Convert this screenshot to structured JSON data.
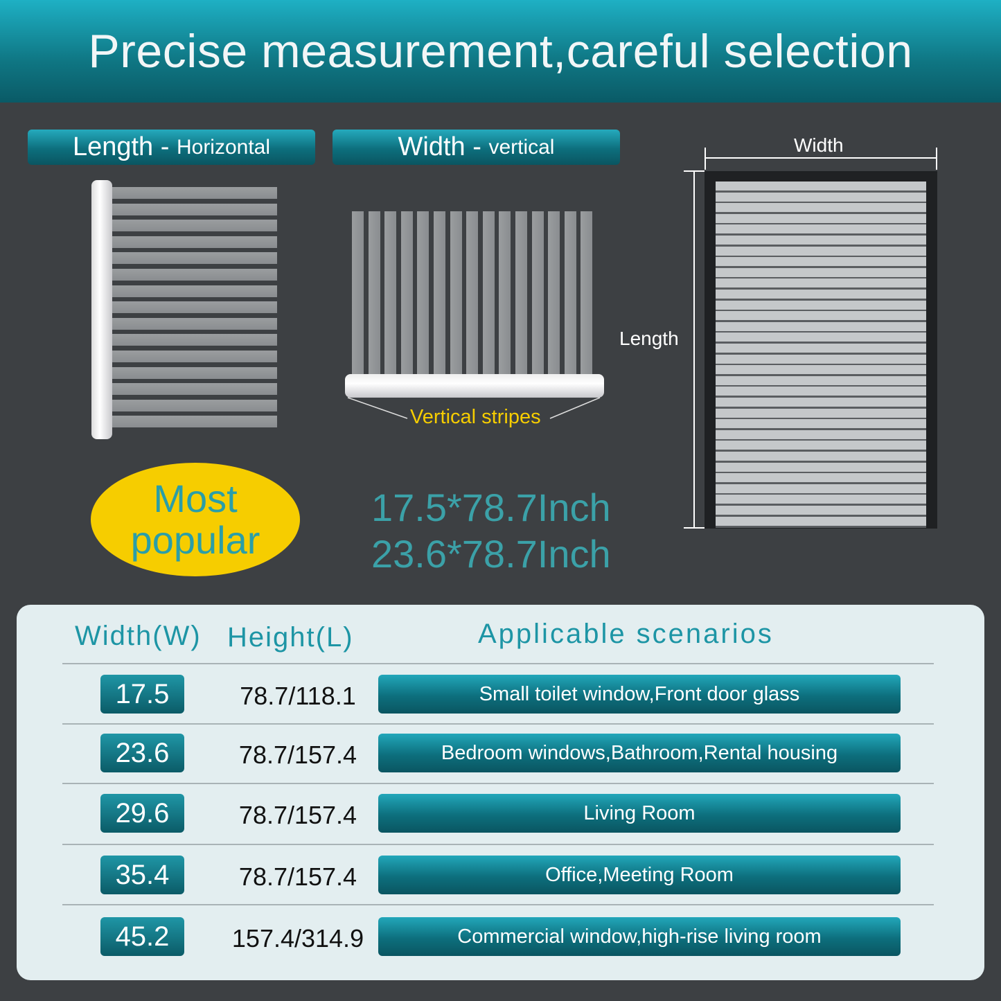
{
  "title": "Precise measurement,careful selection",
  "labels": {
    "length_main": "Length - ",
    "length_sub": "Horizontal",
    "width_main": "Width - ",
    "width_sub": "vertical"
  },
  "vertical_stripes_label": "Vertical stripes",
  "diagram": {
    "width_label": "Width",
    "length_label": "Length"
  },
  "badge": {
    "line1": "Most",
    "line2": "popular",
    "color": "#f6cd00"
  },
  "sizes": [
    "17.5*78.7Inch",
    "23.6*78.7Inch"
  ],
  "table": {
    "headers": [
      "Width(W)",
      "Height(L)",
      "Applicable scenarios"
    ],
    "rows": [
      {
        "width": "17.5",
        "height": "78.7/118.1",
        "scenario": "Small toilet window,Front door glass"
      },
      {
        "width": "23.6",
        "height": "78.7/157.4",
        "scenario": "Bedroom windows,Bathroom,Rental housing"
      },
      {
        "width": "29.6",
        "height": "78.7/157.4",
        "scenario": "Living Room"
      },
      {
        "width": "35.4",
        "height": "78.7/157.4",
        "scenario": "Office,Meeting Room"
      },
      {
        "width": "45.2",
        "height": "157.4/314.9",
        "scenario": "Commercial window,high-rise living room"
      }
    ]
  },
  "colors": {
    "accent": "#0f7683",
    "background": "#3d4043",
    "panel": "#e3eef0",
    "highlight": "#f6cd00"
  }
}
